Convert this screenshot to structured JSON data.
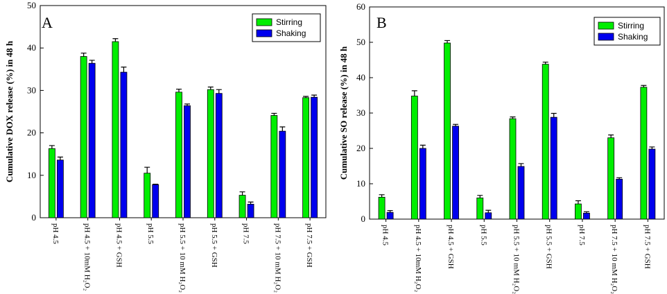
{
  "colors": {
    "stirring": "#00ee00",
    "shaking": "#0000ee",
    "axis": "#000000",
    "background": "#ffffff"
  },
  "chart_data": [
    {
      "type": "bar",
      "panel_label": "A",
      "title": "",
      "xlabel": "",
      "ylabel": "Cumulative DOX release (%) in 48 h",
      "ylim": [
        0,
        50
      ],
      "yticks": [
        0,
        10,
        20,
        30,
        40,
        50
      ],
      "legend_position": "top-right",
      "categories": [
        "pH 4.5",
        "pH 4.5 + 10mM H₂O₂",
        "pH 4.5 + GSH",
        "pH 5.5",
        "pH 5.5 + 10 mM H₂O₂",
        "pH 5.5 + GSH",
        "pH 7.5",
        "pH 7.5 + 10 mM H₂O₂",
        "pH 7.5 + GSH"
      ],
      "series": [
        {
          "name": "Stirring",
          "color": "#00ee00",
          "values": [
            16.3,
            38.0,
            41.5,
            10.5,
            29.6,
            30.2,
            5.3,
            24.1,
            28.3
          ],
          "errors": [
            0.7,
            0.8,
            0.7,
            1.4,
            0.7,
            0.6,
            0.8,
            0.5,
            0.3
          ]
        },
        {
          "name": "Shaking",
          "color": "#0000ee",
          "values": [
            13.6,
            36.4,
            34.3,
            7.8,
            26.4,
            29.3,
            3.2,
            20.4,
            28.4
          ],
          "errors": [
            0.7,
            0.7,
            1.2,
            0.1,
            0.4,
            0.9,
            0.5,
            1.0,
            0.5
          ]
        }
      ]
    },
    {
      "type": "bar",
      "panel_label": "B",
      "title": "",
      "xlabel": "",
      "ylabel": "Cumulative SO release (%) in 48 h",
      "ylim": [
        0,
        60
      ],
      "yticks": [
        0,
        10,
        20,
        30,
        40,
        50,
        60
      ],
      "legend_position": "top-right",
      "categories": [
        "pH 4.5",
        "pH 4.5 + 10mM H₂O₂",
        "pH 4.5 + GSH",
        "pH 5.5",
        "pH 5.5 + 10 mM H₂O₂",
        "pH 5.5 + GSH",
        "pH 7.5",
        "pH 7.5 + 10 mM H₂O₂",
        "pH 7.5 + GSH"
      ],
      "series": [
        {
          "name": "Stirring",
          "color": "#00ee00",
          "values": [
            6.2,
            34.8,
            49.8,
            6.0,
            28.4,
            43.8,
            4.3,
            23.0,
            37.3
          ],
          "errors": [
            0.7,
            1.5,
            0.7,
            0.7,
            0.5,
            0.6,
            0.9,
            0.8,
            0.5
          ]
        },
        {
          "name": "Shaking",
          "color": "#0000ee",
          "values": [
            1.9,
            20.0,
            26.3,
            1.8,
            14.9,
            28.8,
            1.7,
            11.3,
            19.8
          ],
          "errors": [
            0.5,
            0.9,
            0.5,
            0.7,
            0.8,
            1.1,
            0.4,
            0.4,
            0.6
          ]
        }
      ]
    }
  ]
}
